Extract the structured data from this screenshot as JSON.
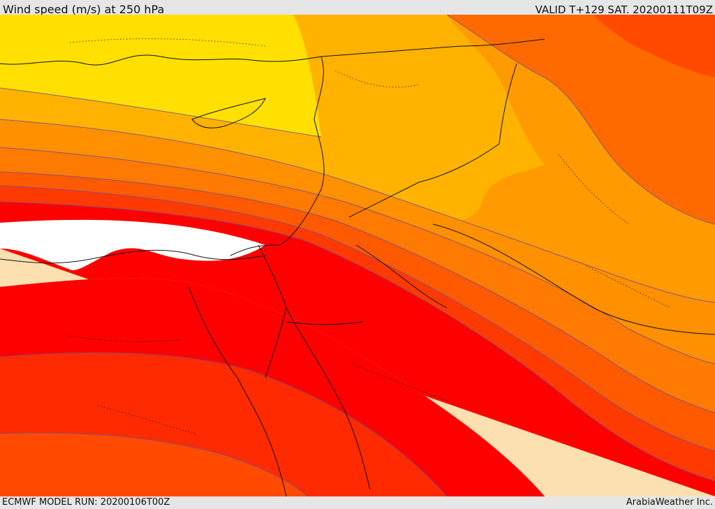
{
  "header": {
    "title": "Wind speed (m/s) at 250 hPa",
    "valid": "VALID T+129 SAT. 20200111T09Z"
  },
  "footer": {
    "model_run": "ECMWF MODEL RUN: 20200106T00Z",
    "credit": "ArabiaWeather Inc."
  },
  "map": {
    "field": "wind speed 250 hPa",
    "colors": {
      "yellow": "#ffe000",
      "light_orange": "#ffb300",
      "orange": "#ff9a00",
      "dark_orange": "#ff7a00",
      "red_orange": "#ff5a00",
      "orange_red": "#ff3a00",
      "red": "#ff0000",
      "white": "#ffffff",
      "wheat": "#fde0b0",
      "contour": "#6b4a9a",
      "borders": "#111111"
    }
  }
}
